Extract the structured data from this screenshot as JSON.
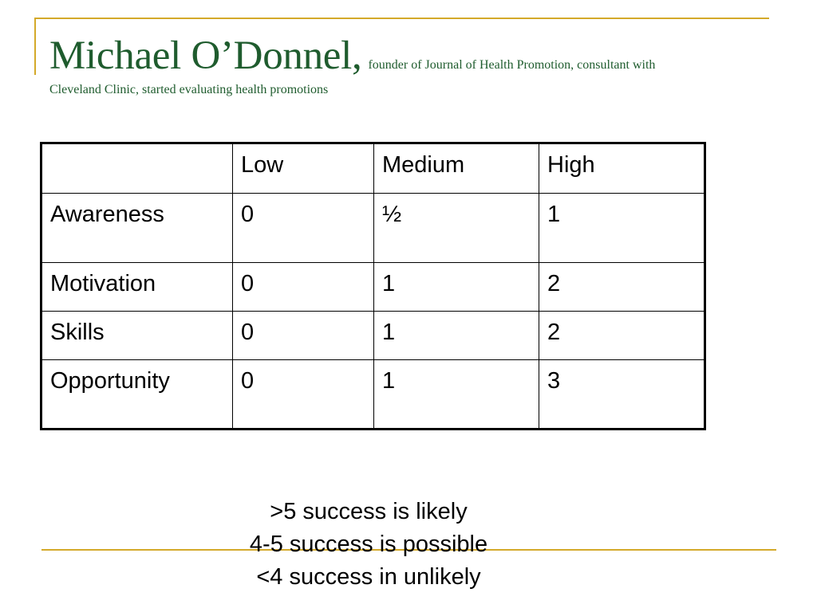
{
  "slide": {
    "title": "Michael O’Donnel,",
    "subtitle_line1": "founder of Journal of Health Promotion, consultant with",
    "subtitle_line2": "Cleveland Clinic, started evaluating health promotions",
    "accent_color": "#d4a92a",
    "title_color": "#1f5c2e"
  },
  "table": {
    "headers": [
      "",
      "Low",
      "Medium",
      "High"
    ],
    "rows": [
      [
        "Awareness",
        "0",
        "½",
        "1"
      ],
      [
        "Motivation",
        "0",
        "1",
        "2"
      ],
      [
        "Skills",
        "0",
        "1",
        "2"
      ],
      [
        "Opportunity",
        "0",
        "1",
        "3"
      ]
    ]
  },
  "legend": {
    "line1": ">5 success is likely",
    "line2": "4-5 success is possible",
    "line3": "<4 success in unlikely"
  }
}
